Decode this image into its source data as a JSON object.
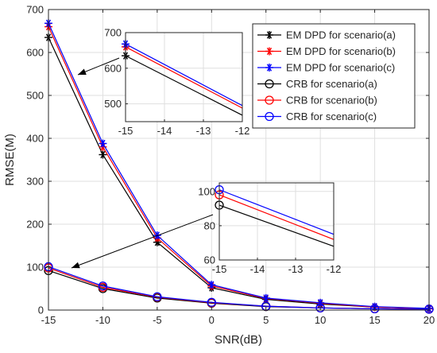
{
  "chart_data": {
    "type": "line",
    "xlabel": "SNR(dB)",
    "ylabel": "RMSE(M)",
    "xlim": [
      -15,
      20
    ],
    "ylim": [
      0,
      700
    ],
    "xticks": [
      -15,
      -10,
      -5,
      0,
      5,
      10,
      15,
      20
    ],
    "yticks": [
      0,
      100,
      200,
      300,
      400,
      500,
      600,
      700
    ],
    "grid": true,
    "legend_position": "top-right",
    "x": [
      -15,
      -10,
      -5,
      0,
      5,
      10,
      15,
      20
    ],
    "series": [
      {
        "name": "EM DPD for scenario(a)",
        "marker": "star",
        "color": "#000000",
        "values": [
          635,
          362,
          158,
          52,
          25,
          14,
          7,
          3
        ]
      },
      {
        "name": "EM DPD for scenario(b)",
        "marker": "star",
        "color": "#ff0000",
        "values": [
          660,
          380,
          168,
          56,
          27,
          16,
          7,
          3
        ]
      },
      {
        "name": "EM DPD for scenario(c)",
        "marker": "star",
        "color": "#0000ff",
        "values": [
          668,
          388,
          174,
          59,
          28,
          17,
          8,
          4
        ]
      },
      {
        "name": "CRB for scenario(a)",
        "marker": "circle",
        "color": "#000000",
        "values": [
          92,
          50,
          28,
          16,
          8,
          5,
          3,
          2
        ]
      },
      {
        "name": "CRB for scenario(b)",
        "marker": "circle",
        "color": "#ff0000",
        "values": [
          98,
          53,
          30,
          17,
          9,
          5,
          3,
          2
        ]
      },
      {
        "name": "CRB for scenario(c)",
        "marker": "circle",
        "color": "#0000ff",
        "values": [
          101,
          56,
          31,
          18,
          9,
          5,
          3,
          2
        ]
      }
    ],
    "insets": [
      {
        "name": "inset-upper",
        "xlim": [
          -15,
          -12
        ],
        "ylim": [
          450,
          700
        ],
        "xticks": [
          -15,
          -14,
          -13,
          -12
        ],
        "yticks": [
          500,
          600,
          700
        ],
        "x": [
          -15,
          -12
        ],
        "series": [
          {
            "name": "EM DPD for scenario(a)",
            "marker": "star",
            "color": "#000000",
            "values": [
              635,
              468
            ]
          },
          {
            "name": "EM DPD for scenario(b)",
            "marker": "star",
            "color": "#ff0000",
            "values": [
              660,
              488
            ]
          },
          {
            "name": "EM DPD for scenario(c)",
            "marker": "star",
            "color": "#0000ff",
            "values": [
              668,
              495
            ]
          }
        ]
      },
      {
        "name": "inset-lower",
        "xlim": [
          -15,
          -12
        ],
        "ylim": [
          60,
          105
        ],
        "xticks": [
          -15,
          -14,
          -13,
          -12
        ],
        "yticks": [
          60,
          80,
          100
        ],
        "x": [
          -15,
          -12
        ],
        "series": [
          {
            "name": "CRB for scenario(a)",
            "marker": "circle",
            "color": "#000000",
            "values": [
              92,
              68
            ]
          },
          {
            "name": "CRB for scenario(b)",
            "marker": "circle",
            "color": "#ff0000",
            "values": [
              98,
              72
            ]
          },
          {
            "name": "CRB for scenario(c)",
            "marker": "circle",
            "color": "#0000ff",
            "values": [
              101,
              75
            ]
          }
        ]
      }
    ]
  }
}
